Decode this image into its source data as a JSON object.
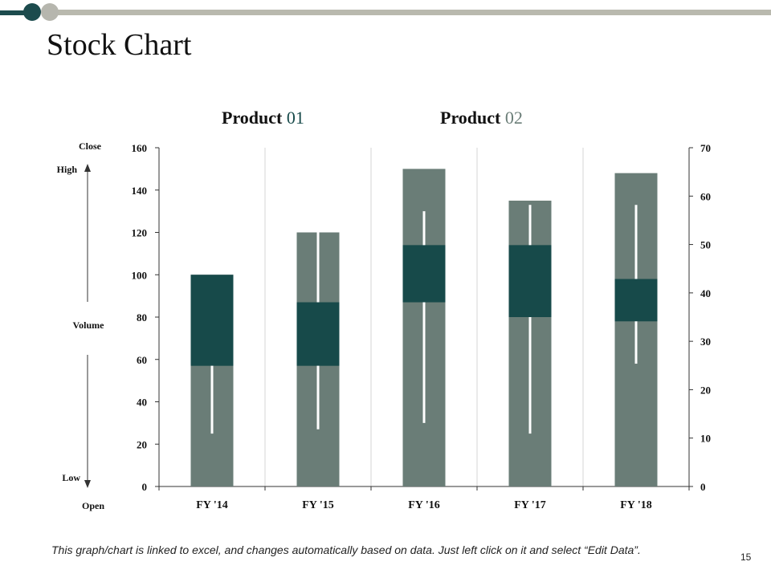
{
  "slide": {
    "title": "Stock Chart",
    "footnote": "This graph/chart is linked to excel, and changes automatically based on data. Just left click on it and select “Edit Data”.",
    "page_number": "15"
  },
  "colors": {
    "accent_dark": "#174a4a",
    "accent_gray": "#6a7d77",
    "topbar_line": "#b9b9ae",
    "dot_dark": "#1c4b4d",
    "dot_light": "#b6b6ae",
    "gridline": "#d6d6d6",
    "axis": "#333333",
    "wick": "#ffffff"
  },
  "legend": [
    {
      "word": "Product",
      "num": "01",
      "color": "#174a4a"
    },
    {
      "word": "Product",
      "num": "02",
      "color": "#6a7d77"
    }
  ],
  "side_axis": {
    "close": "Close",
    "high": "High",
    "volume": "Volume",
    "low": "Low",
    "open": "Open"
  },
  "chart_data": {
    "type": "bar",
    "categories": [
      "FY '14",
      "FY '15",
      "FY '16",
      "FY '17",
      "FY '18"
    ],
    "volume": [
      100,
      120,
      150,
      135,
      148
    ],
    "open": [
      57,
      57,
      87,
      80,
      78
    ],
    "close": [
      100,
      87,
      114,
      114,
      98
    ],
    "high": [
      null,
      120,
      130,
      133,
      133
    ],
    "low": [
      25,
      27,
      30,
      25,
      58
    ],
    "ylim_left": [
      0,
      160
    ],
    "left_ticks": [
      0,
      20,
      40,
      60,
      80,
      100,
      120,
      140,
      160
    ],
    "ylim_right": [
      0,
      70
    ],
    "right_ticks": [
      0,
      10,
      20,
      30,
      40,
      50,
      60,
      70
    ],
    "grid": "vertical"
  }
}
